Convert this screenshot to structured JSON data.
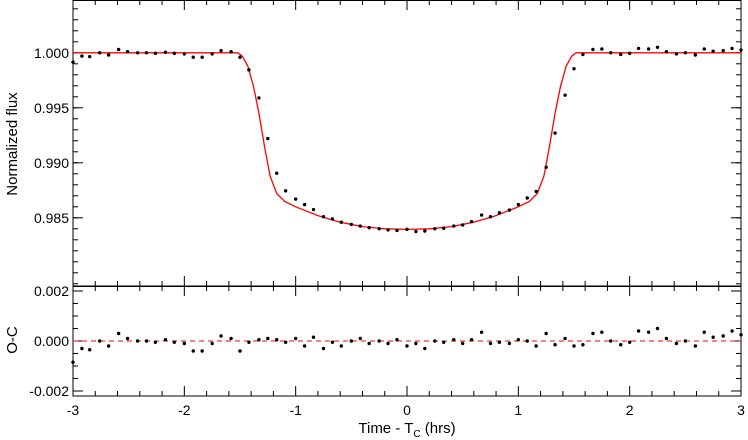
{
  "chart_data": [
    {
      "panel": "light-curve",
      "type": "scatter",
      "xlabel_main": "Time - T",
      "xlabel_sub": "C",
      "xlabel_unit": " (hrs)",
      "ylabel": "Normalized flux",
      "xlim": [
        -3,
        3
      ],
      "ylim": [
        0.9788,
        1.0048
      ],
      "yticks": [
        0.985,
        0.99,
        0.995,
        1.0
      ],
      "ytick_labels": [
        "0.985",
        "0.990",
        "0.995",
        "1.000"
      ],
      "colors": {
        "model": "#ff0000",
        "points": "#000000",
        "axes": "#000000"
      },
      "series": [
        {
          "kind": "observed",
          "x": [
            -3.0,
            -2.92,
            -2.85,
            -2.76,
            -2.68,
            -2.59,
            -2.51,
            -2.42,
            -2.34,
            -2.26,
            -2.17,
            -2.09,
            -2.0,
            -1.92,
            -1.84,
            -1.75,
            -1.67,
            -1.58,
            -1.5,
            -1.42,
            -1.33,
            -1.25,
            -1.17,
            -1.09,
            -1.0,
            -0.92,
            -0.84,
            -0.75,
            -0.67,
            -0.59,
            -0.5,
            -0.42,
            -0.34,
            -0.25,
            -0.17,
            -0.09,
            0.0,
            0.08,
            0.16,
            0.25,
            0.33,
            0.42,
            0.5,
            0.58,
            0.67,
            0.75,
            0.83,
            0.92,
            1.0,
            1.08,
            1.16,
            1.25,
            1.33,
            1.42,
            1.5,
            1.58,
            1.67,
            1.75,
            1.83,
            1.92,
            2.0,
            2.08,
            2.17,
            2.25,
            2.33,
            2.42,
            2.5,
            2.59,
            2.67,
            2.75,
            2.84,
            2.92,
            3.0
          ],
          "y": [
            0.99915,
            0.9997,
            0.99965,
            1.0,
            0.9998,
            1.0003,
            1.0001,
            1.0,
            1.0,
            0.99995,
            1.00005,
            0.99995,
            0.9999,
            0.9996,
            0.9996,
            0.9999,
            1.0002,
            1.0001,
            0.9996,
            0.99845,
            0.9959,
            0.9922,
            0.98905,
            0.98745,
            0.9867,
            0.9862,
            0.98575,
            0.9851,
            0.9849,
            0.9846,
            0.9844,
            0.98425,
            0.9841,
            0.984,
            0.9839,
            0.98385,
            0.98395,
            0.98375,
            0.9838,
            0.984,
            0.98405,
            0.98425,
            0.98435,
            0.98465,
            0.98525,
            0.9851,
            0.98545,
            0.9857,
            0.9862,
            0.9868,
            0.9874,
            0.9896,
            0.9927,
            0.99615,
            0.99855,
            0.99985,
            1.0003,
            1.00035,
            1.0,
            0.99985,
            0.99995,
            1.0004,
            1.00035,
            1.0005,
            1.0001,
            0.9999,
            1.0,
            0.9998,
            1.00035,
            1.00015,
            1.0002,
            1.0004,
            1.00025
          ]
        },
        {
          "kind": "model",
          "x": [
            -3.0,
            -1.52,
            -1.48,
            -1.43,
            -1.38,
            -1.33,
            -1.28,
            -1.23,
            -1.17,
            -1.1,
            -1.0,
            -0.9,
            -0.8,
            -0.6,
            -0.4,
            -0.2,
            0.0,
            0.2,
            0.4,
            0.6,
            0.8,
            0.9,
            1.0,
            1.1,
            1.17,
            1.23,
            1.28,
            1.33,
            1.38,
            1.43,
            1.48,
            1.52,
            3.0
          ],
          "y": [
            1.0,
            1.0,
            0.9997,
            0.9988,
            0.997,
            0.9945,
            0.9915,
            0.9888,
            0.9872,
            0.9865,
            0.986,
            0.9856,
            0.9852,
            0.9846,
            0.9842,
            0.984,
            0.98395,
            0.984,
            0.9842,
            0.9846,
            0.9852,
            0.9856,
            0.986,
            0.9865,
            0.9872,
            0.9888,
            0.9915,
            0.9945,
            0.997,
            0.9988,
            0.9997,
            1.0,
            1.0
          ]
        }
      ]
    },
    {
      "panel": "residuals",
      "type": "scatter",
      "ylabel": "O-C",
      "xlim": [
        -3,
        3
      ],
      "ylim": [
        -0.0022,
        0.0022
      ],
      "yticks": [
        -0.002,
        0.0,
        0.002
      ],
      "ytick_labels": [
        "-0.002",
        "0.000",
        "0.002"
      ],
      "xticks": [
        -3,
        -2,
        -1,
        0,
        1,
        2,
        3
      ],
      "xtick_labels": [
        "-3",
        "-2",
        "-1",
        "0",
        "1",
        "2",
        "3"
      ],
      "reference_line": 0.0,
      "series": [
        {
          "kind": "residuals",
          "x": [
            -3.0,
            -2.92,
            -2.85,
            -2.76,
            -2.68,
            -2.59,
            -2.51,
            -2.42,
            -2.34,
            -2.26,
            -2.17,
            -2.09,
            -2.0,
            -1.92,
            -1.84,
            -1.75,
            -1.67,
            -1.58,
            -1.5,
            -1.42,
            -1.33,
            -1.25,
            -1.17,
            -1.09,
            -1.0,
            -0.92,
            -0.84,
            -0.75,
            -0.67,
            -0.59,
            -0.5,
            -0.42,
            -0.34,
            -0.25,
            -0.17,
            -0.09,
            0.0,
            0.08,
            0.16,
            0.25,
            0.33,
            0.42,
            0.5,
            0.58,
            0.67,
            0.75,
            0.83,
            0.92,
            1.0,
            1.08,
            1.16,
            1.25,
            1.33,
            1.42,
            1.5,
            1.58,
            1.67,
            1.75,
            1.83,
            1.92,
            2.0,
            2.08,
            2.17,
            2.25,
            2.33,
            2.42,
            2.5,
            2.59,
            2.67,
            2.75,
            2.84,
            2.92,
            3.0
          ],
          "y": [
            -0.00085,
            -0.0003,
            -0.00035,
            0.0,
            -0.0002,
            0.0003,
            0.0001,
            0.0,
            0.0,
            -5e-05,
            5e-05,
            -5e-05,
            -0.0001,
            -0.0004,
            -0.0004,
            -0.0001,
            0.0002,
            0.0001,
            -0.0004,
            -5e-05,
            5e-05,
            0.0001,
            5e-05,
            -5e-05,
            0.0001,
            -0.0002,
            0.00015,
            -0.0003,
            -5e-05,
            -0.0002,
            0.0,
            0.0001,
            -0.0001,
            0.0,
            -0.0001,
            5e-05,
            -0.0002,
            -0.0001,
            -0.0003,
            0.0,
            -5e-05,
            5e-05,
            -0.0001,
            5e-05,
            0.00035,
            -0.0001,
            -5e-05,
            -0.0001,
            5e-05,
            0.0,
            -0.0002,
            0.0003,
            -0.00015,
            0.0001,
            -0.0002,
            -0.00015,
            0.0003,
            0.00035,
            0.0,
            -0.00015,
            -5e-05,
            0.0004,
            0.00035,
            0.0005,
            0.0001,
            -0.0001,
            0.0,
            -0.0002,
            0.00035,
            0.00015,
            0.0002,
            0.0004,
            0.00025
          ]
        }
      ]
    }
  ]
}
